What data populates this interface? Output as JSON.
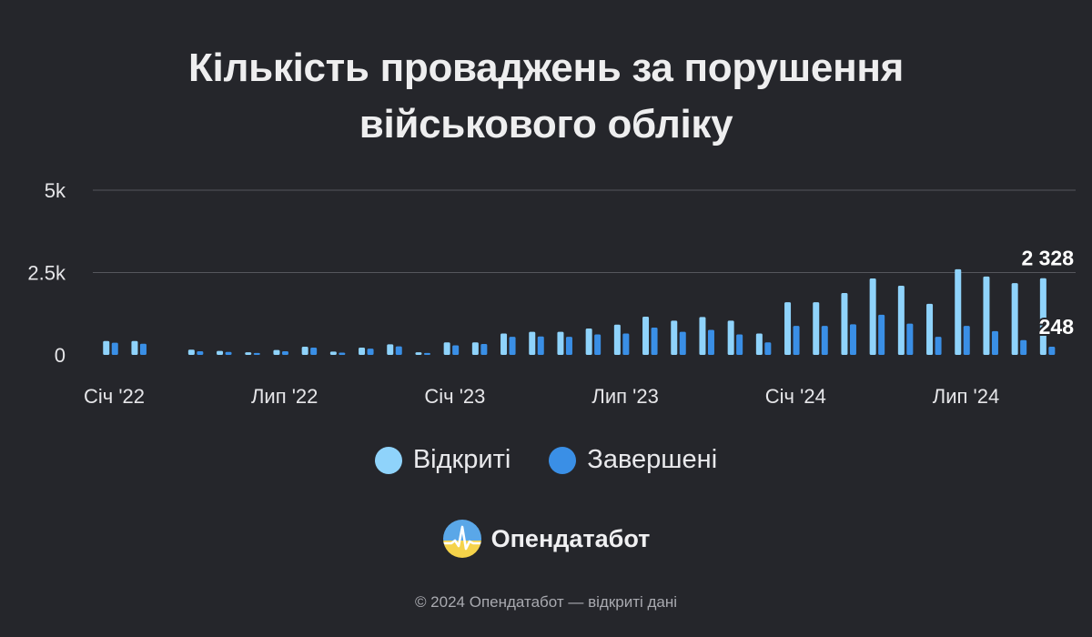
{
  "title": {
    "line1": "Кількість проваджень за порушення",
    "line2": "військового обліку"
  },
  "legend": {
    "opened": "Відкриті",
    "closed": "Завершені"
  },
  "colors": {
    "opened": "#8fd3fb",
    "closed": "#3a8fe6",
    "background": "#25262b",
    "grid": "#55565c"
  },
  "brand": {
    "name": "Опендатабот",
    "icon": "opendatabot-logo-icon"
  },
  "footer": "© 2024 Опендатабот — відкриті дані",
  "chart_data": {
    "type": "bar",
    "title": "Кількість проваджень за порушення військового обліку",
    "categories": [
      "2022-01",
      "2022-02",
      "2022-03",
      "2022-04",
      "2022-05",
      "2022-06",
      "2022-07",
      "2022-08",
      "2022-09",
      "2022-10",
      "2022-11",
      "2022-12",
      "2023-01",
      "2023-02",
      "2023-03",
      "2023-04",
      "2023-05",
      "2023-06",
      "2023-07",
      "2023-08",
      "2023-09",
      "2023-10",
      "2023-11",
      "2023-12",
      "2024-01",
      "2024-02",
      "2024-03",
      "2024-04",
      "2024-05",
      "2024-06",
      "2024-07",
      "2024-08",
      "2024-09",
      "2024-10"
    ],
    "x_tick_labels": [
      {
        "label": "Січ '22",
        "category": "2022-01"
      },
      {
        "label": "Лип '22",
        "category": "2022-07"
      },
      {
        "label": "Січ '23",
        "category": "2023-01"
      },
      {
        "label": "Лип '23",
        "category": "2023-07"
      },
      {
        "label": "Січ '24",
        "category": "2024-01"
      },
      {
        "label": "Лип '24",
        "category": "2024-07"
      }
    ],
    "series": [
      {
        "name": "Відкриті",
        "values": [
          420,
          420,
          null,
          160,
          120,
          80,
          150,
          250,
          100,
          220,
          320,
          80,
          380,
          380,
          650,
          700,
          700,
          800,
          920,
          1160,
          1040,
          1150,
          1040,
          650,
          1600,
          1600,
          1880,
          2320,
          2100,
          1550,
          2600,
          2380,
          2180,
          2328
        ]
      },
      {
        "name": "Завершені",
        "values": [
          370,
          340,
          null,
          110,
          90,
          60,
          110,
          220,
          70,
          190,
          260,
          60,
          290,
          330,
          550,
          560,
          550,
          620,
          650,
          830,
          700,
          760,
          620,
          380,
          880,
          880,
          930,
          1220,
          950,
          550,
          880,
          720,
          450,
          248
        ]
      }
    ],
    "data_labels": [
      {
        "series": "Відкриті",
        "category": "2024-10",
        "text": "2 328"
      },
      {
        "series": "Завершені",
        "category": "2024-10",
        "text": "248"
      }
    ],
    "y_ticks": [
      {
        "value": 0,
        "label": "0"
      },
      {
        "value": 2500,
        "label": "2.5k"
      },
      {
        "value": 5000,
        "label": "5k"
      }
    ],
    "ylim": [
      0,
      5000
    ],
    "grid": true,
    "legend_position": "bottom"
  }
}
